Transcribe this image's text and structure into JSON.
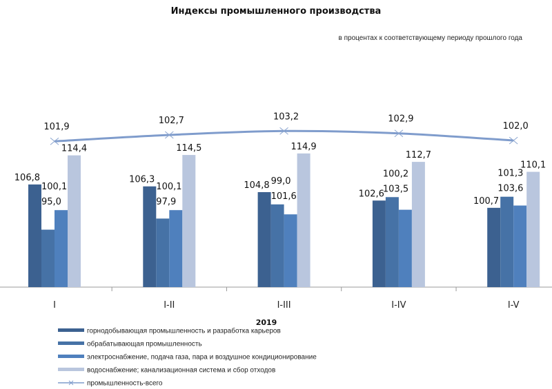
{
  "chart_data": {
    "type": "bar",
    "title": "Индексы промышленного  производства",
    "subtitle": "в процентах к соответствующему периоду прошлого года",
    "xlabel": "2019",
    "categories": [
      "I",
      "I-II",
      "I-III",
      "I-IV",
      "I-V"
    ],
    "ylim": [
      80,
      128
    ],
    "y2lim": [
      83.5,
      106.7
    ],
    "grid": false,
    "legend": "bottom-left",
    "series": [
      {
        "name": "горнодобывающая промышленность и разработка карьеров",
        "kind": "bar",
        "color": "#3c6190",
        "values": [
          106.8,
          106.3,
          104.8,
          102.6,
          100.7
        ]
      },
      {
        "name": "обрабатывающая промышленность",
        "kind": "bar",
        "color": "#4672a6",
        "values": [
          95.0,
          97.9,
          101.6,
          103.5,
          103.6
        ]
      },
      {
        "name": "электроснабжение, подача газа, пара и воздушное кондиционирование",
        "kind": "bar",
        "color": "#4f80bd",
        "values": [
          100.1,
          100.1,
          99.0,
          100.2,
          101.3
        ]
      },
      {
        "name": "водоснабжение; канализационная система и сбор отходов",
        "kind": "bar",
        "color": "#b9c6de",
        "values": [
          114.4,
          114.5,
          114.9,
          112.7,
          110.1
        ]
      },
      {
        "name": "промышленность-всего",
        "kind": "line",
        "axis": "secondary",
        "marker": "x",
        "color": "#7f9ccc",
        "values": [
          101.9,
          102.7,
          103.2,
          102.9,
          102.0
        ]
      }
    ]
  }
}
